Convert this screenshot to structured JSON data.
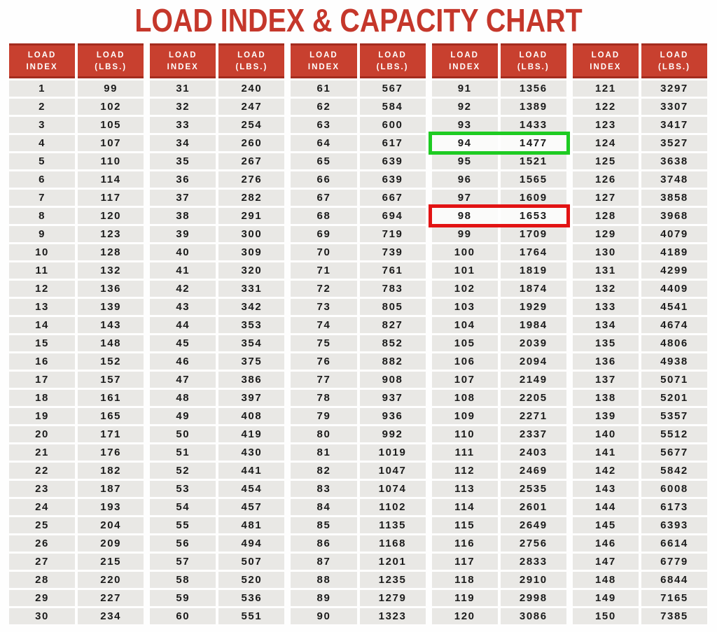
{
  "title": "LOAD INDEX & CAPACITY CHART",
  "colors": {
    "title": "#c5372b",
    "header_bg": "#c8402f",
    "header_text": "#ffffff",
    "cell_bg": "#e9e8e5",
    "cell_text": "#1b1b1b",
    "highlight_green": "#1ecb22",
    "highlight_red": "#e21313",
    "page_bg": "#fefefe"
  },
  "chart_data": {
    "type": "table",
    "title": "LOAD INDEX & CAPACITY CHART",
    "column_headers_per_group": [
      "LOAD\nINDEX",
      "LOAD\n(LBS.)"
    ],
    "groups": [
      {
        "indices": [
          1,
          2,
          3,
          4,
          5,
          6,
          7,
          8,
          9,
          10,
          11,
          12,
          13,
          14,
          15,
          16,
          17,
          18,
          19,
          20,
          21,
          22,
          23,
          24,
          25,
          26,
          27,
          28,
          29,
          30
        ],
        "loads": [
          99,
          102,
          105,
          107,
          110,
          114,
          117,
          120,
          123,
          128,
          132,
          136,
          139,
          143,
          148,
          152,
          157,
          161,
          165,
          171,
          176,
          182,
          187,
          193,
          204,
          209,
          215,
          220,
          227,
          234
        ]
      },
      {
        "indices": [
          31,
          32,
          33,
          34,
          35,
          36,
          37,
          38,
          39,
          40,
          41,
          42,
          43,
          44,
          45,
          46,
          47,
          48,
          49,
          50,
          51,
          52,
          53,
          54,
          55,
          56,
          57,
          58,
          59,
          60
        ],
        "loads": [
          240,
          247,
          254,
          260,
          267,
          276,
          282,
          291,
          300,
          309,
          320,
          331,
          342,
          353,
          354,
          375,
          386,
          397,
          408,
          419,
          430,
          441,
          454,
          457,
          481,
          494,
          507,
          520,
          536,
          551
        ]
      },
      {
        "indices": [
          61,
          62,
          63,
          64,
          65,
          66,
          67,
          68,
          69,
          70,
          71,
          72,
          73,
          74,
          75,
          76,
          77,
          78,
          79,
          80,
          81,
          82,
          83,
          84,
          85,
          86,
          87,
          88,
          89,
          90
        ],
        "loads": [
          567,
          584,
          600,
          617,
          639,
          639,
          667,
          694,
          719,
          739,
          761,
          783,
          805,
          827,
          852,
          882,
          908,
          937,
          936,
          992,
          1019,
          1047,
          1074,
          1102,
          1135,
          1168,
          1201,
          1235,
          1279,
          1323
        ]
      },
      {
        "indices": [
          91,
          92,
          93,
          94,
          95,
          96,
          97,
          98,
          99,
          100,
          101,
          102,
          103,
          104,
          105,
          106,
          107,
          108,
          109,
          110,
          111,
          112,
          113,
          114,
          115,
          116,
          117,
          118,
          119,
          120
        ],
        "loads": [
          1356,
          1389,
          1433,
          1477,
          1521,
          1565,
          1609,
          1653,
          1709,
          1764,
          1819,
          1874,
          1929,
          1984,
          2039,
          2094,
          2149,
          2205,
          2271,
          2337,
          2403,
          2469,
          2535,
          2601,
          2649,
          2756,
          2833,
          2910,
          2998,
          3086
        ]
      },
      {
        "indices": [
          121,
          122,
          123,
          124,
          125,
          126,
          127,
          128,
          129,
          130,
          131,
          132,
          133,
          134,
          135,
          136,
          137,
          138,
          139,
          140,
          141,
          142,
          143,
          144,
          145,
          146,
          147,
          148,
          149,
          150
        ],
        "loads": [
          3297,
          3307,
          3417,
          3527,
          3638,
          3748,
          3858,
          3968,
          4079,
          4189,
          4299,
          4409,
          4541,
          4674,
          4806,
          4938,
          5071,
          5201,
          5357,
          5512,
          5677,
          5842,
          6008,
          6173,
          6393,
          6614,
          6779,
          6844,
          7165,
          7385
        ]
      }
    ],
    "highlights": [
      {
        "group_index": 3,
        "row_index": 3,
        "type": "green",
        "load_index": 94,
        "load_lbs": 1477
      },
      {
        "group_index": 3,
        "row_index": 7,
        "type": "red",
        "load_index": 98,
        "load_lbs": 1653
      }
    ],
    "layout_hints": {
      "num_groups": 5,
      "rows_per_group": 30,
      "grid": "white gaps between cells, wider gaps between column-pair groups"
    }
  }
}
